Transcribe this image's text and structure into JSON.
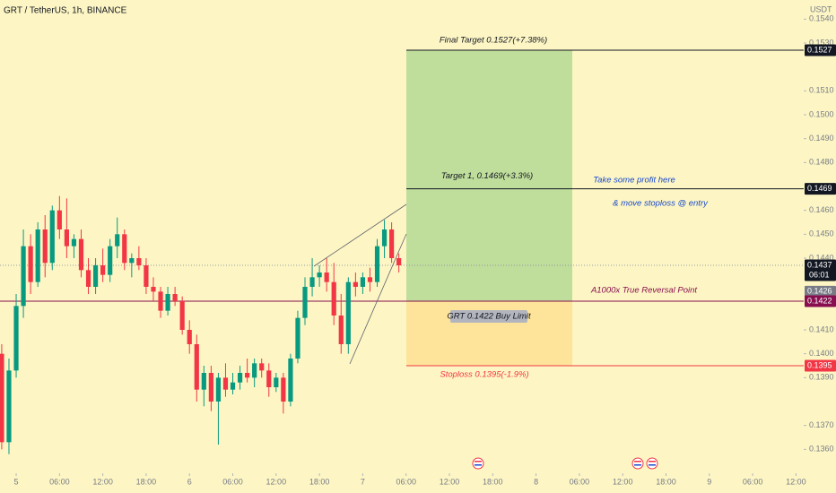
{
  "header": {
    "title": "GRT / TetherUS, 1h, BINANCE",
    "currency": "USDT"
  },
  "chart_data": {
    "type": "candlestick",
    "up_color": "#089981",
    "down_color": "#f23645",
    "xlim": [
      -2.24,
      109.07
    ],
    "xticks": [
      {
        "value": 0,
        "label": "5"
      },
      {
        "value": 6,
        "label": "06:00"
      },
      {
        "value": 12,
        "label": "12:00"
      },
      {
        "value": 18,
        "label": "18:00"
      },
      {
        "value": 24,
        "label": "6"
      },
      {
        "value": 30,
        "label": "06:00"
      },
      {
        "value": 36,
        "label": "12:00"
      },
      {
        "value": 42,
        "label": "18:00"
      },
      {
        "value": 48,
        "label": "7"
      },
      {
        "value": 54,
        "label": "06:00"
      },
      {
        "value": 60,
        "label": "12:00"
      },
      {
        "value": 66,
        "label": "18:00"
      },
      {
        "value": 72,
        "label": "8"
      },
      {
        "value": 78,
        "label": "06:00"
      },
      {
        "value": 84,
        "label": "12:00"
      },
      {
        "value": 90,
        "label": "18:00"
      },
      {
        "value": 96,
        "label": "9"
      },
      {
        "value": 102,
        "label": "06:00"
      },
      {
        "value": 108,
        "label": "12:00"
      }
    ],
    "ylim": [
      0.135,
      0.1548
    ],
    "yticks": [
      {
        "value": 0.154,
        "label": "0.1540"
      },
      {
        "value": 0.153,
        "label": "0.1530"
      },
      {
        "value": 0.151,
        "label": "0.1510"
      },
      {
        "value": 0.15,
        "label": "0.1500"
      },
      {
        "value": 0.149,
        "label": "0.1490"
      },
      {
        "value": 0.148,
        "label": "0.1480"
      },
      {
        "value": 0.146,
        "label": "0.1460"
      },
      {
        "value": 0.145,
        "label": "0.1450"
      },
      {
        "value": 0.144,
        "label": "0.1440"
      },
      {
        "value": 0.141,
        "label": "0.1410"
      },
      {
        "value": 0.14,
        "label": "0.1400"
      },
      {
        "value": 0.139,
        "label": "0.1390"
      },
      {
        "value": 0.137,
        "label": "0.1370"
      },
      {
        "value": 0.136,
        "label": "0.1360"
      }
    ],
    "x": [
      -2,
      -1,
      0,
      1,
      2,
      3,
      4,
      5,
      6,
      7,
      8,
      9,
      10,
      11,
      12,
      13,
      14,
      15,
      16,
      17,
      18,
      19,
      20,
      21,
      22,
      23,
      24,
      25,
      26,
      27,
      28,
      29,
      30,
      31,
      32,
      33,
      34,
      35,
      36,
      37,
      38,
      39,
      40,
      41,
      42,
      43,
      44,
      45,
      46,
      47,
      48,
      49,
      50,
      51,
      52,
      53
    ],
    "open": [
      0.14,
      0.1363,
      0.1393,
      0.142,
      0.1445,
      0.143,
      0.1452,
      0.1438,
      0.146,
      0.1452,
      0.1445,
      0.1448,
      0.1435,
      0.1428,
      0.1437,
      0.1433,
      0.1445,
      0.145,
      0.1438,
      0.144,
      0.1437,
      0.1428,
      0.1426,
      0.1418,
      0.1425,
      0.1422,
      0.141,
      0.1404,
      0.1385,
      0.1392,
      0.138,
      0.139,
      0.1385,
      0.1388,
      0.1392,
      0.139,
      0.1396,
      0.1393,
      0.1386,
      0.139,
      0.138,
      0.1398,
      0.1415,
      0.1428,
      0.1432,
      0.1434,
      0.143,
      0.1416,
      0.1404,
      0.143,
      0.1428,
      0.1432,
      0.143,
      0.1445,
      0.1452,
      0.144
    ],
    "high": [
      0.1404,
      0.1398,
      0.1425,
      0.1452,
      0.145,
      0.1455,
      0.1458,
      0.1462,
      0.1466,
      0.1465,
      0.145,
      0.1452,
      0.144,
      0.144,
      0.1444,
      0.1448,
      0.1457,
      0.1452,
      0.1442,
      0.1445,
      0.144,
      0.1432,
      0.1428,
      0.1428,
      0.1428,
      0.1424,
      0.1414,
      0.1408,
      0.1395,
      0.1395,
      0.1392,
      0.1396,
      0.1392,
      0.1395,
      0.1398,
      0.1398,
      0.1398,
      0.1396,
      0.1392,
      0.1392,
      0.14,
      0.1418,
      0.1432,
      0.144,
      0.1437,
      0.144,
      0.1438,
      0.1425,
      0.1432,
      0.1434,
      0.1434,
      0.1436,
      0.1448,
      0.1456,
      0.1455,
      0.1442
    ],
    "low": [
      0.136,
      0.1358,
      0.139,
      0.1415,
      0.1425,
      0.1428,
      0.1432,
      0.1435,
      0.1448,
      0.144,
      0.144,
      0.1432,
      0.1425,
      0.1425,
      0.143,
      0.143,
      0.144,
      0.1435,
      0.1432,
      0.1435,
      0.1425,
      0.1422,
      0.1415,
      0.1416,
      0.142,
      0.1408,
      0.14,
      0.138,
      0.1378,
      0.1376,
      0.1362,
      0.1382,
      0.1383,
      0.1385,
      0.1388,
      0.1386,
      0.139,
      0.1382,
      0.1384,
      0.1375,
      0.1378,
      0.1396,
      0.1412,
      0.1424,
      0.1428,
      0.1426,
      0.1412,
      0.14,
      0.14,
      0.1424,
      0.1425,
      0.1426,
      0.1428,
      0.144,
      0.1438,
      0.1434
    ],
    "close": [
      0.1363,
      0.1393,
      0.142,
      0.1445,
      0.143,
      0.1452,
      0.1438,
      0.146,
      0.1452,
      0.1445,
      0.1448,
      0.1435,
      0.1428,
      0.1437,
      0.1433,
      0.1445,
      0.145,
      0.1438,
      0.144,
      0.1437,
      0.1428,
      0.1426,
      0.1418,
      0.1425,
      0.1422,
      0.141,
      0.1404,
      0.1385,
      0.1392,
      0.138,
      0.139,
      0.1385,
      0.1388,
      0.1392,
      0.139,
      0.1396,
      0.1393,
      0.1386,
      0.139,
      0.138,
      0.1398,
      0.1415,
      0.1428,
      0.1432,
      0.1434,
      0.143,
      0.1416,
      0.1404,
      0.143,
      0.1428,
      0.1432,
      0.143,
      0.1445,
      0.1452,
      0.144,
      0.1437
    ],
    "price_labels": [
      {
        "value": 0.1527,
        "color": "#131722"
      },
      {
        "value": 0.1469,
        "color": "#131722"
      },
      {
        "value": 0.1437,
        "color": "#131722",
        "countdown": "06:01"
      },
      {
        "value": 0.1426,
        "color": "#787b86"
      },
      {
        "value": 0.1422,
        "color": "#880e4f"
      },
      {
        "value": 0.1395,
        "color": "#f23645"
      }
    ],
    "annotations": {
      "final_target": "Final Target 0.1527(+7.38%)",
      "target1": "Target 1, 0.1469(+3.3%)",
      "take_profit": "Take some profit here",
      "move_stop": "& move stoploss @ entry",
      "reversal": "A1000x True Reversal Point",
      "buy_limit": "GRT 0.1422 Buy Limit",
      "stoploss": "Stoploss 0.1395(-1.9%)"
    }
  }
}
